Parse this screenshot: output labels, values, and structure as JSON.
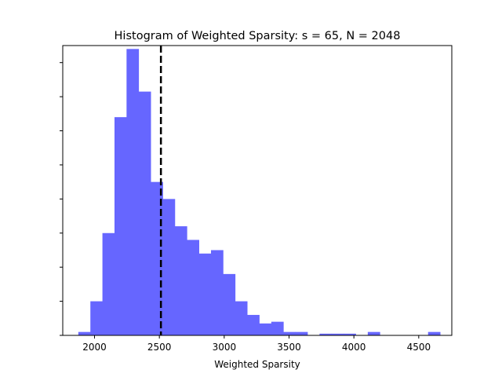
{
  "chart_data": {
    "type": "bar",
    "subtype": "histogram",
    "title": "Histogram of Weighted Sparsity: s =  65, N = 2048",
    "xlabel": "Weighted Sparsity",
    "ylabel": "",
    "xlim": [
      1755,
      4755
    ],
    "ylim": [
      0,
      170
    ],
    "x_ticks": [
      2000,
      2500,
      3000,
      3500,
      4000,
      4500
    ],
    "x_tick_labels": [
      "2000",
      "2500",
      "3000",
      "3500",
      "4000",
      "4500"
    ],
    "y_ticks": [
      0,
      20,
      40,
      60,
      80,
      100,
      120,
      140,
      160
    ],
    "y_tick_labels_visible": false,
    "bar_color": "#6666ff",
    "bin_width": 93,
    "bins": [
      {
        "start": 1875,
        "end": 1968,
        "count": 2
      },
      {
        "start": 1968,
        "end": 2061,
        "count": 20
      },
      {
        "start": 2061,
        "end": 2154,
        "count": 60
      },
      {
        "start": 2154,
        "end": 2247,
        "count": 128
      },
      {
        "start": 2247,
        "end": 2340,
        "count": 168
      },
      {
        "start": 2340,
        "end": 2433,
        "count": 143
      },
      {
        "start": 2433,
        "end": 2526,
        "count": 90
      },
      {
        "start": 2526,
        "end": 2619,
        "count": 80
      },
      {
        "start": 2619,
        "end": 2712,
        "count": 64
      },
      {
        "start": 2712,
        "end": 2805,
        "count": 56
      },
      {
        "start": 2805,
        "end": 2898,
        "count": 48
      },
      {
        "start": 2898,
        "end": 2991,
        "count": 50
      },
      {
        "start": 2991,
        "end": 3084,
        "count": 36
      },
      {
        "start": 3084,
        "end": 3177,
        "count": 20
      },
      {
        "start": 3177,
        "end": 3270,
        "count": 12
      },
      {
        "start": 3270,
        "end": 3363,
        "count": 7
      },
      {
        "start": 3363,
        "end": 3456,
        "count": 8
      },
      {
        "start": 3456,
        "end": 3549,
        "count": 2
      },
      {
        "start": 3549,
        "end": 3642,
        "count": 2
      },
      {
        "start": 3642,
        "end": 3735,
        "count": 0
      },
      {
        "start": 3735,
        "end": 3828,
        "count": 1
      },
      {
        "start": 3828,
        "end": 3921,
        "count": 1
      },
      {
        "start": 3921,
        "end": 4014,
        "count": 1
      },
      {
        "start": 4014,
        "end": 4107,
        "count": 0
      },
      {
        "start": 4107,
        "end": 4200,
        "count": 2
      },
      {
        "start": 4200,
        "end": 4293,
        "count": 0
      },
      {
        "start": 4293,
        "end": 4386,
        "count": 0
      },
      {
        "start": 4386,
        "end": 4479,
        "count": 0
      },
      {
        "start": 4479,
        "end": 4572,
        "count": 0
      },
      {
        "start": 4572,
        "end": 4665,
        "count": 2
      }
    ],
    "reference_line": {
      "x": 2512,
      "style": "dashed",
      "color": "#000000"
    }
  }
}
